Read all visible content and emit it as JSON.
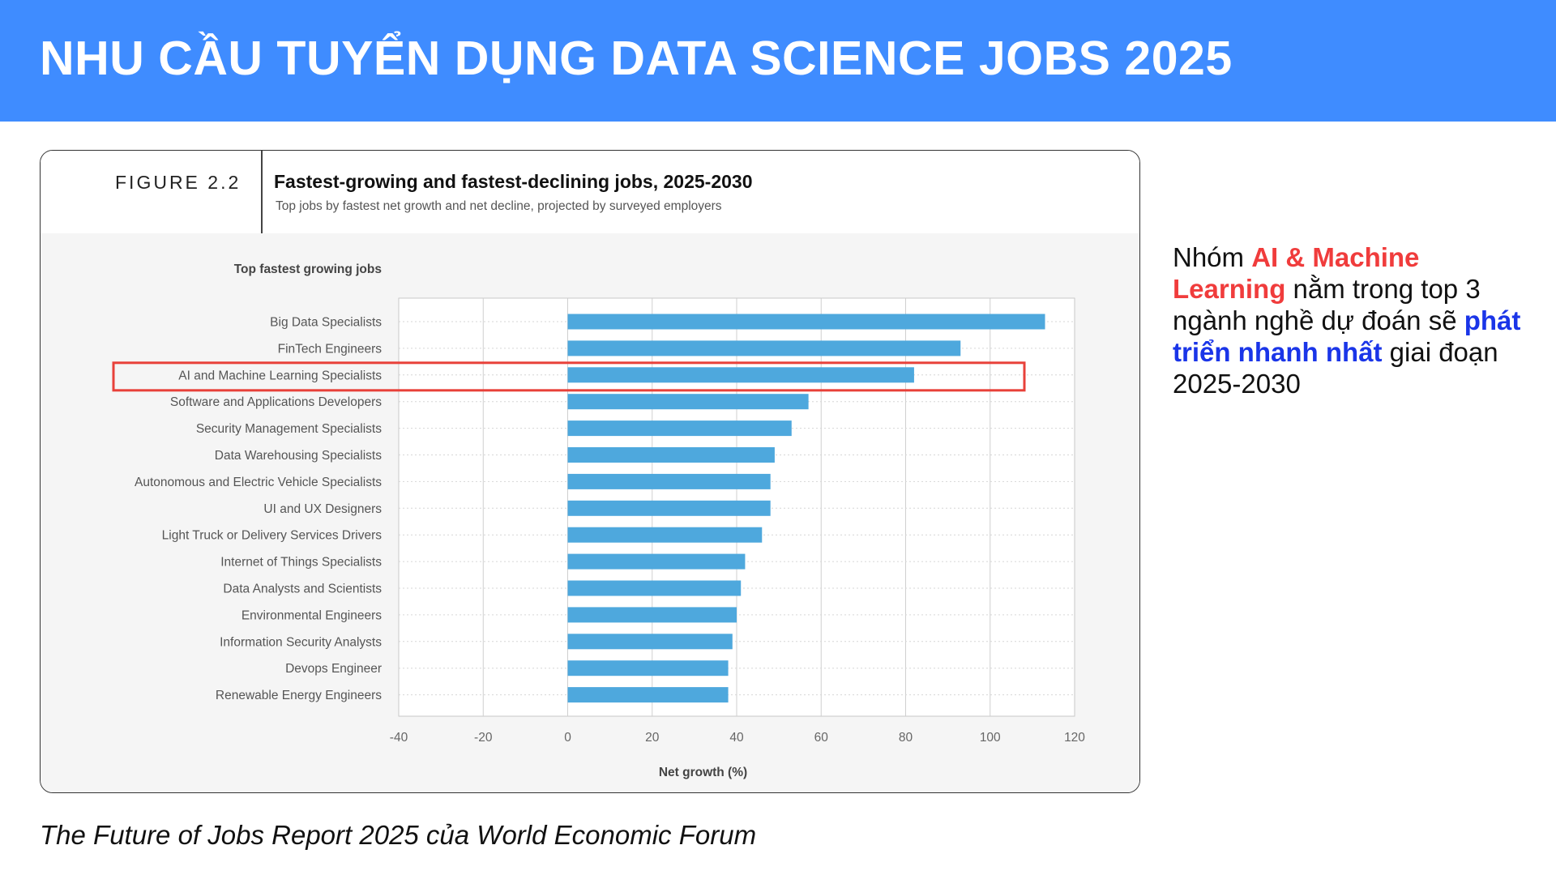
{
  "header": {
    "title": "NHU CẦU TUYỂN DỤNG DATA SCIENCE JOBS 2025"
  },
  "figure": {
    "label": "FIGURE 2.2",
    "title": "Fastest-growing and fastest-declining jobs, 2025-2030",
    "subtitle": "Top jobs by fastest net growth and net decline, projected by surveyed employers"
  },
  "chart_data": {
    "type": "bar",
    "orientation": "horizontal",
    "title": "Top fastest growing jobs",
    "xlabel": "Net growth (%)",
    "xlim": [
      -40,
      120
    ],
    "xticks": [
      -40,
      -20,
      0,
      20,
      40,
      60,
      80,
      100,
      120
    ],
    "grid": true,
    "categories": [
      "Big Data Specialists",
      "FinTech Engineers",
      "AI and Machine Learning Specialists",
      "Software and Applications Developers",
      "Security Management Specialists",
      "Data Warehousing Specialists",
      "Autonomous and Electric Vehicle Specialists",
      "UI and UX Designers",
      "Light Truck or Delivery Services Drivers",
      "Internet of Things Specialists",
      "Data Analysts and Scientists",
      "Environmental Engineers",
      "Information Security Analysts",
      "Devops Engineer",
      "Renewable Energy Engineers"
    ],
    "values": [
      113,
      93,
      82,
      57,
      53,
      49,
      48,
      48,
      46,
      42,
      41,
      40,
      39,
      38,
      38
    ],
    "highlighted_category": "AI and Machine Learning Specialists",
    "bar_color": "#4ea8dd",
    "highlight_color": "#e8413a"
  },
  "side_note": {
    "part1": "Nhóm ",
    "highlight_red": "AI & Machine Learning",
    "part2": "  nằm trong top 3 ngành nghề dự đoán sẽ ",
    "highlight_blue": "phát triển nhanh nhất",
    "part3": " giai đoạn 2025-2030"
  },
  "caption": "The Future of Jobs Report 2025 của World Economic Forum",
  "colors": {
    "header_bg": "#3f8cff",
    "accent_red": "#f03c3c",
    "accent_blue": "#1a35e8"
  }
}
